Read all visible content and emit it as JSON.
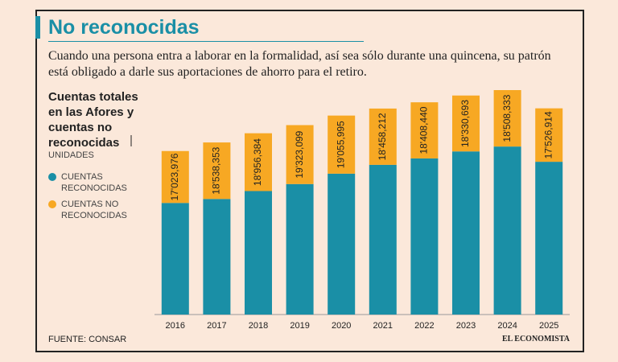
{
  "chart_data": {
    "type": "stacked-bar",
    "title": "No reconocidas",
    "subtitle": "Cuando una persona entra a laborar en la formalidad, así sea sólo durante una quincena, su patrón está obligado a darle sus aportaciones de ahorro para el retiro.",
    "heading": "Cuentas totales en las Afores y cuentas no reconocidas",
    "units": "UNIDADES",
    "source": "FUENTE: CONSAR",
    "logo": "EL ECONOMISTA",
    "categories": [
      "2016",
      "2017",
      "2018",
      "2019",
      "2020",
      "2021",
      "2022",
      "2023",
      "2024",
      "2025"
    ],
    "series": [
      {
        "name": "CUENTAS RECONOCIDAS",
        "color": "#1a8fa6",
        "values": [
          36600000,
          37900000,
          40500000,
          42800000,
          46200000,
          49100000,
          51200000,
          53500000,
          55100000,
          50100000
        ]
      },
      {
        "name": "CUENTAS NO RECONOCIDAS",
        "color": "#f7a823",
        "values": [
          17023976,
          18538353,
          18956384,
          19323099,
          19055995,
          18458212,
          18408440,
          18330693,
          18508333,
          17526914
        ],
        "value_labels": [
          "17'023,976",
          "18'538,353",
          "18'956,384",
          "19'323,099",
          "19'055,995",
          "18'458,212",
          "18'408,440",
          "18'330,693",
          "18'508,333",
          "17'526,914"
        ]
      }
    ]
  }
}
